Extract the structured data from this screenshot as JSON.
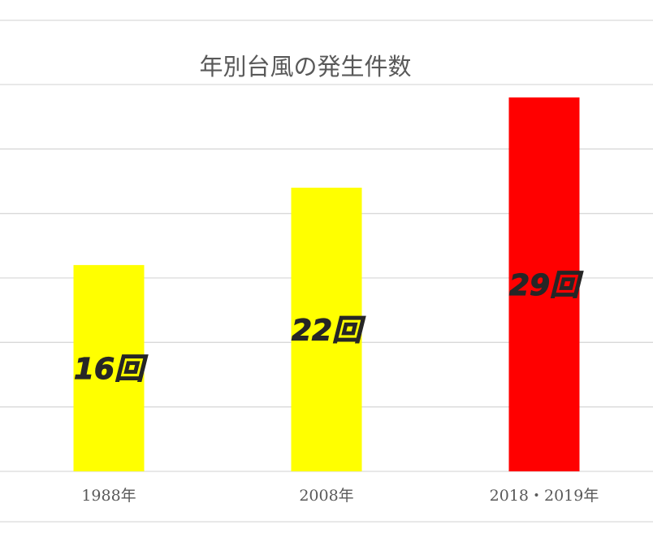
{
  "chart_data": {
    "type": "bar",
    "title": "年別台風の発生件数",
    "xlabel": "",
    "ylabel": "",
    "categories": [
      "1988年",
      "2008年",
      "2018・2019年"
    ],
    "values": [
      16,
      22,
      29
    ],
    "data_labels": [
      "16回",
      "22回",
      "29回"
    ],
    "bar_colors": [
      "#FFFF00",
      "#FFFF00",
      "#FF0000"
    ],
    "ylim": [
      0,
      30
    ],
    "y_gridline_step": 5,
    "grid": true,
    "legend": "none",
    "y_tick_labels_visible": false
  }
}
